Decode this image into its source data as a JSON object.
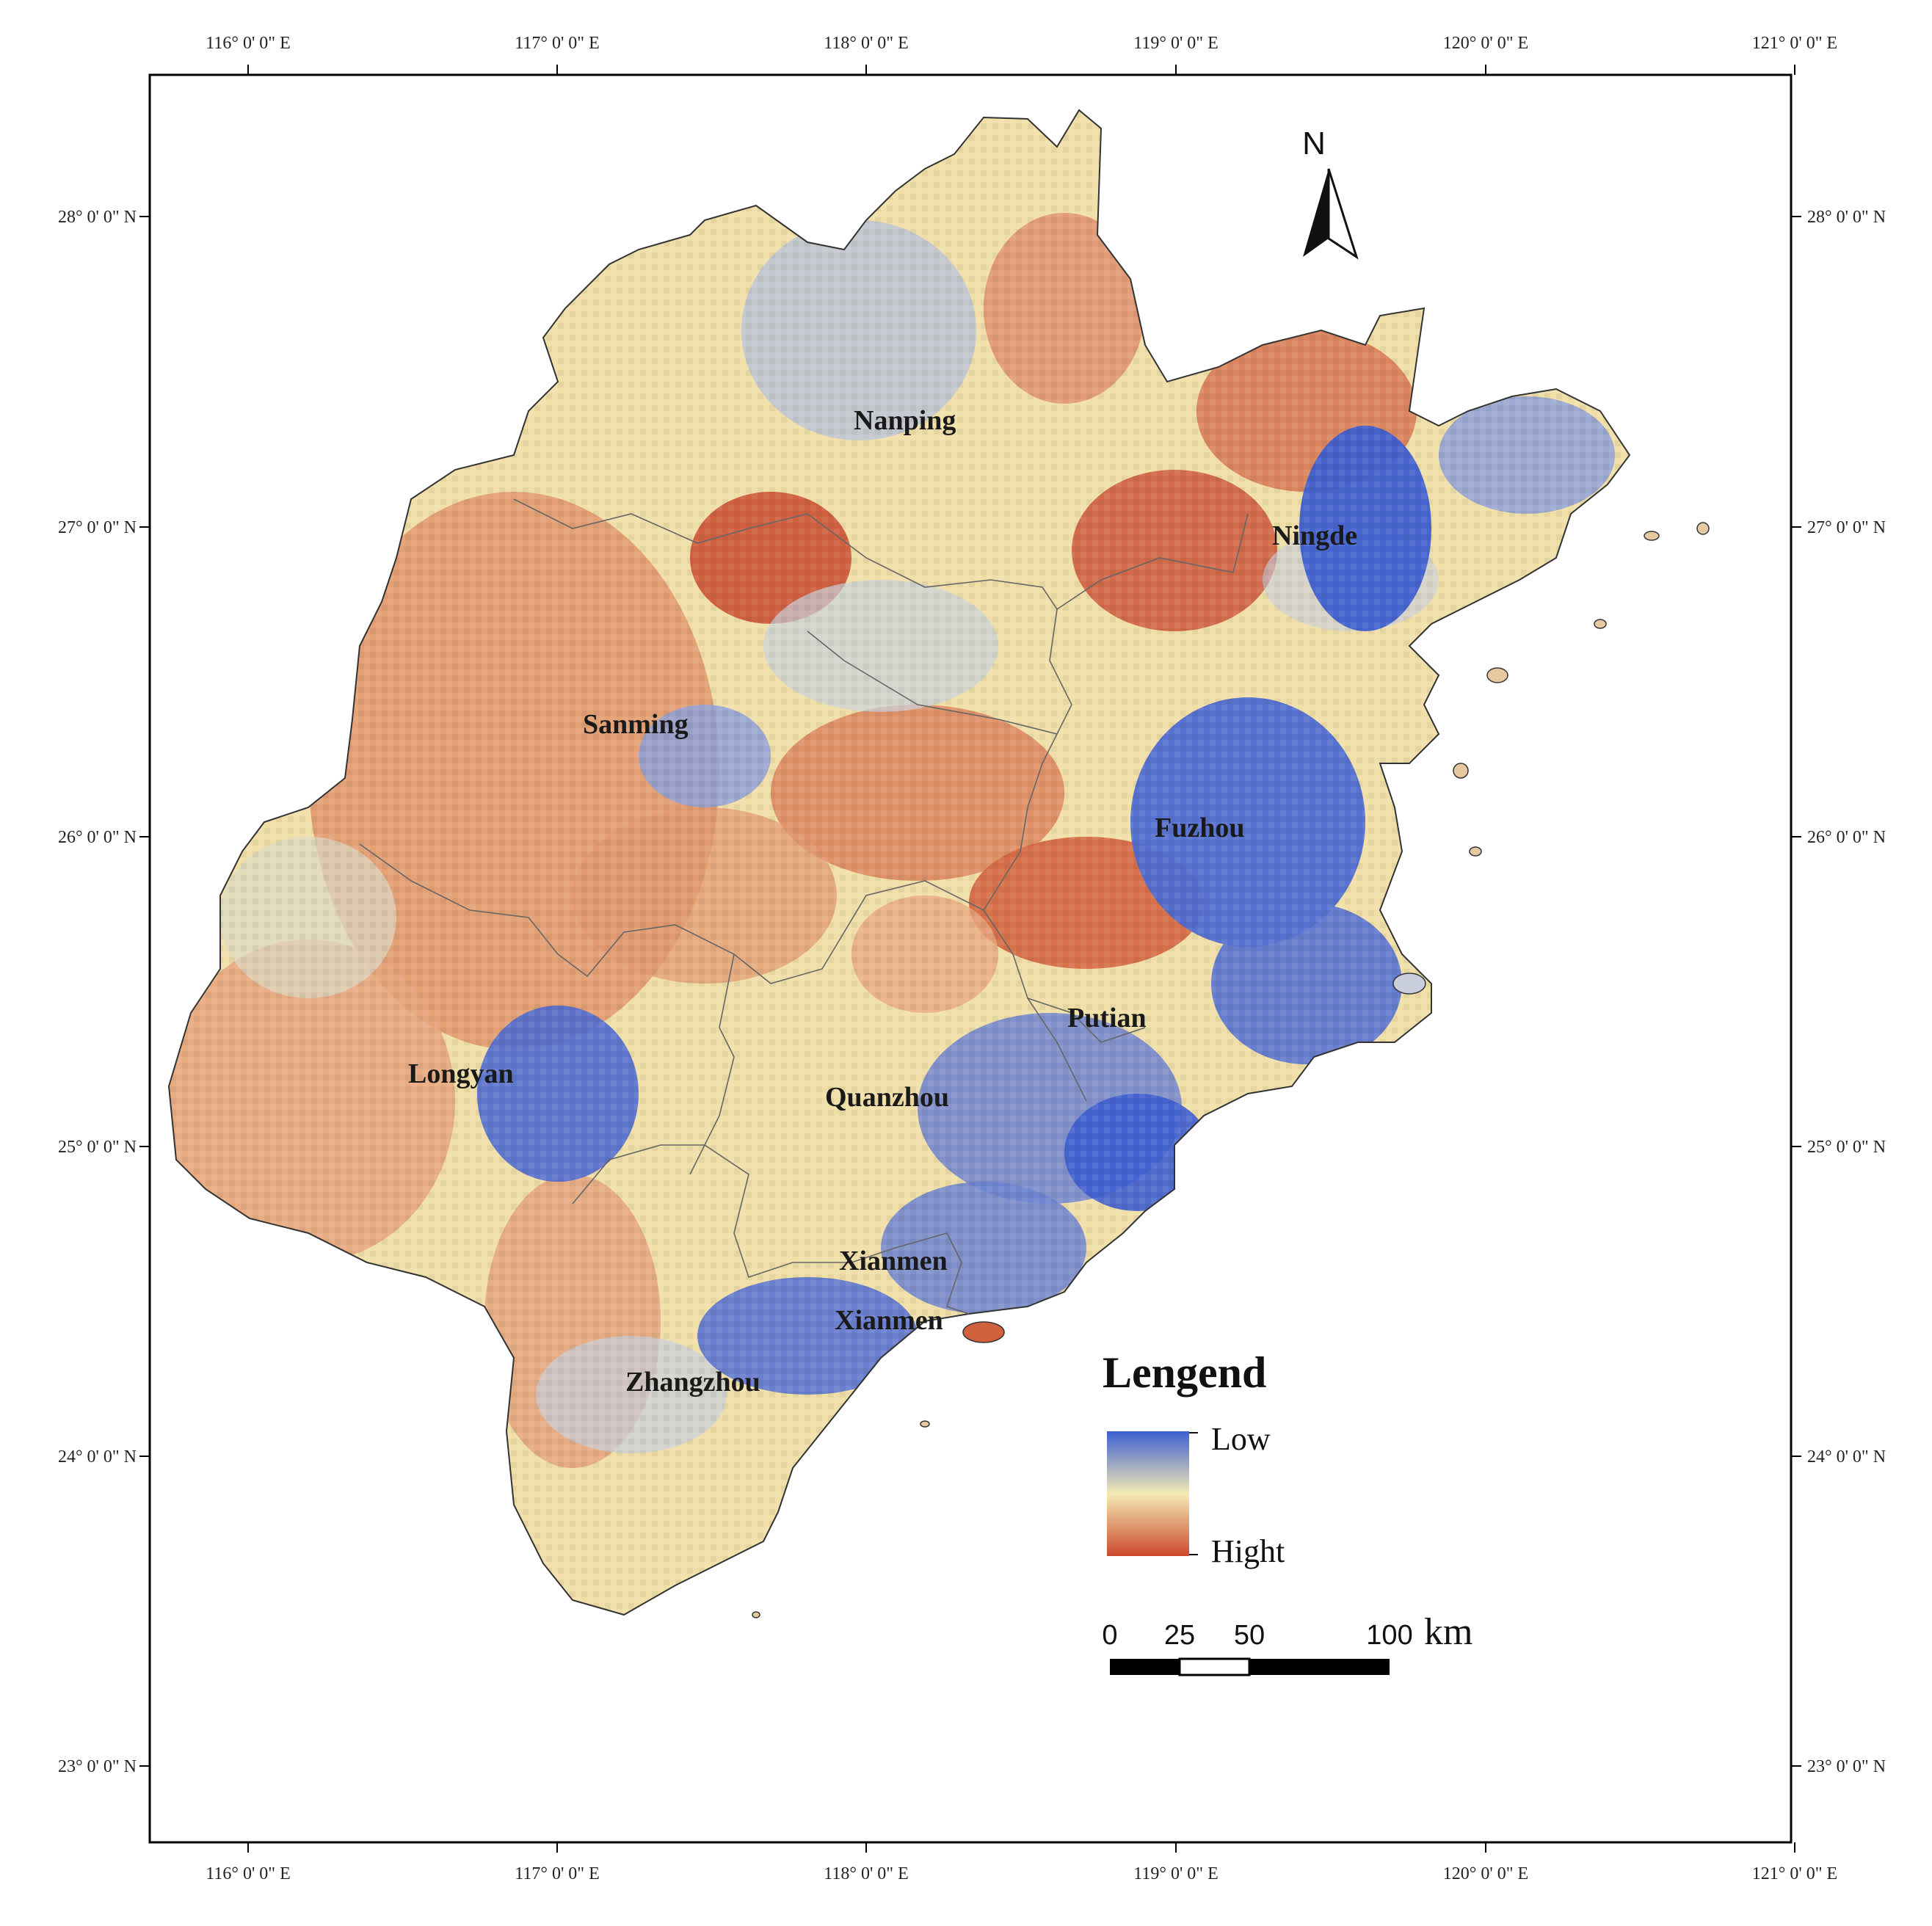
{
  "lon_ticks": [
    "116° 0' 0\" E",
    "117° 0' 0\" E",
    "118° 0' 0\" E",
    "119° 0' 0\" E",
    "120° 0' 0\" E",
    "121° 0' 0\" E"
  ],
  "lat_ticks": [
    "28° 0' 0\" N",
    "27° 0' 0\" N",
    "26° 0' 0\" N",
    "25° 0' 0\" N",
    "24° 0' 0\" N",
    "23° 0' 0\" N"
  ],
  "cities": [
    "Nanping",
    "Ningde",
    "Sanming",
    "Fuzhou",
    "Putian",
    "Longyan",
    "Quanzhou",
    "Xianmen",
    "Xianmen",
    "Zhangzhou"
  ],
  "north_arrow": "N",
  "legend": {
    "title": "Lengend",
    "low_label": "Low",
    "high_label": "Hight",
    "colors": {
      "low": "#3d5fd1",
      "mid": "#f4eab4",
      "high": "#cc4a2e"
    }
  },
  "scale_bar": {
    "ticks": [
      "0",
      "25",
      "50",
      "100"
    ],
    "unit": "km"
  }
}
